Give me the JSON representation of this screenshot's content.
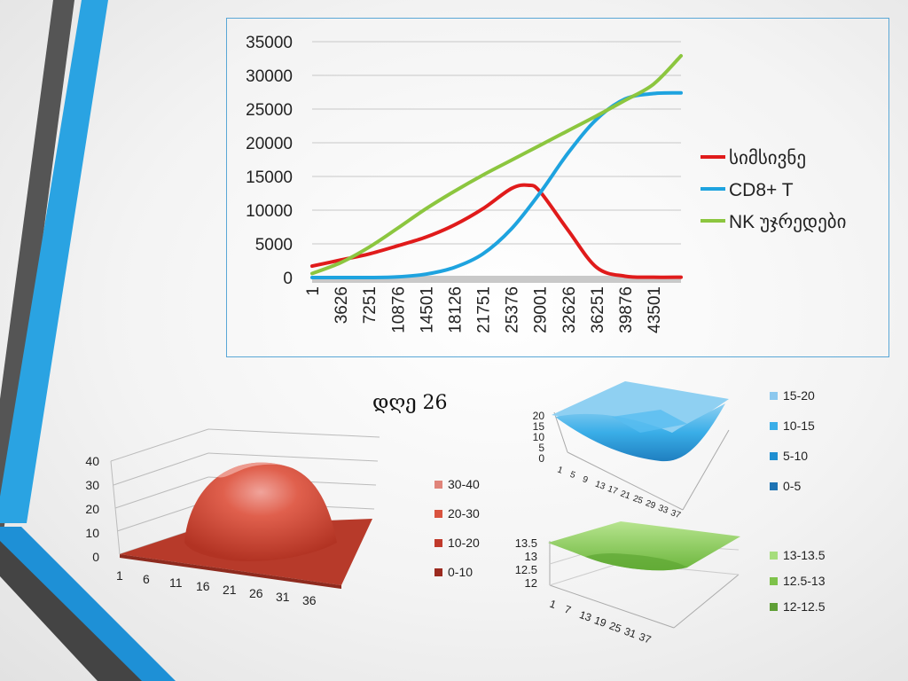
{
  "chart_data": [
    {
      "type": "line",
      "title": "",
      "xlabel": "",
      "ylabel": "",
      "categories": [
        "1",
        "3626",
        "7251",
        "10876",
        "14501",
        "18126",
        "21751",
        "25376",
        "29001",
        "32626",
        "36251",
        "39876",
        "43501"
      ],
      "ylim": [
        0,
        35000
      ],
      "yticks": [
        "35000",
        "30000",
        "25000",
        "20000",
        "15000",
        "10000",
        "5000",
        "0"
      ],
      "grid": true,
      "legend_position": "right",
      "series": [
        {
          "name": "სიმსივნე",
          "color": "#e01b1b",
          "x": [
            1,
            3626,
            7251,
            10876,
            14501,
            18126,
            21751,
            25376,
            27500,
            29001,
            32626,
            36251,
            39876,
            43501,
            47000
          ],
          "values": [
            1700,
            2600,
            3500,
            4700,
            6000,
            7800,
            10200,
            13200,
            13700,
            12800,
            7000,
            1500,
            200,
            50,
            50
          ]
        },
        {
          "name": "CD8+ T",
          "color": "#1ea3df",
          "x": [
            1,
            3626,
            7251,
            10876,
            14501,
            18126,
            21751,
            25376,
            29001,
            32626,
            36251,
            39876,
            43501,
            47000
          ],
          "values": [
            0,
            0,
            0,
            100,
            500,
            1500,
            3500,
            7200,
            12500,
            18500,
            23500,
            26500,
            27300,
            27400
          ]
        },
        {
          "name": "NK უჯრედები",
          "color": "#8cc63f",
          "x": [
            1,
            3626,
            7251,
            10876,
            14501,
            18126,
            21751,
            25376,
            29001,
            32626,
            36251,
            39876,
            43501,
            47000
          ],
          "values": [
            600,
            2200,
            4500,
            7300,
            10200,
            12800,
            15200,
            17400,
            19600,
            21800,
            24000,
            26300,
            28700,
            32900
          ]
        }
      ]
    },
    {
      "type": "surface",
      "title": "დღე 26",
      "zticks": [
        "40",
        "30",
        "20",
        "10",
        "0"
      ],
      "xticks": [
        "1",
        "6",
        "11",
        "16",
        "21",
        "26",
        "31",
        "36"
      ],
      "legend": [
        {
          "label": "30-40",
          "color": "#e0847a"
        },
        {
          "label": "20-30",
          "color": "#d9533f"
        },
        {
          "label": "10-20",
          "color": "#c0392b"
        },
        {
          "label": "0-10",
          "color": "#9b2a1f"
        }
      ]
    },
    {
      "type": "surface",
      "title": "",
      "zticks": [
        "20",
        "15",
        "10",
        "5",
        "0"
      ],
      "xticks": [
        "1",
        "5",
        "9",
        "13",
        "17",
        "21",
        "25",
        "29",
        "33",
        "37"
      ],
      "legend": [
        {
          "label": "15-20",
          "color": "#8cc8ee"
        },
        {
          "label": "10-15",
          "color": "#3aaee8"
        },
        {
          "label": "5-10",
          "color": "#1f8fd1"
        },
        {
          "label": "0-5",
          "color": "#1d73b3"
        }
      ]
    },
    {
      "type": "surface",
      "title": "",
      "zticks": [
        "13.5",
        "13",
        "12.5",
        "12"
      ],
      "xticks": [
        "1",
        "7",
        "13",
        "19",
        "25",
        "31",
        "37"
      ],
      "legend": [
        {
          "label": "13-13.5",
          "color": "#a6dd7c"
        },
        {
          "label": "12.5-13",
          "color": "#7ec24a"
        },
        {
          "label": "12-12.5",
          "color": "#5e9e35"
        }
      ]
    }
  ]
}
